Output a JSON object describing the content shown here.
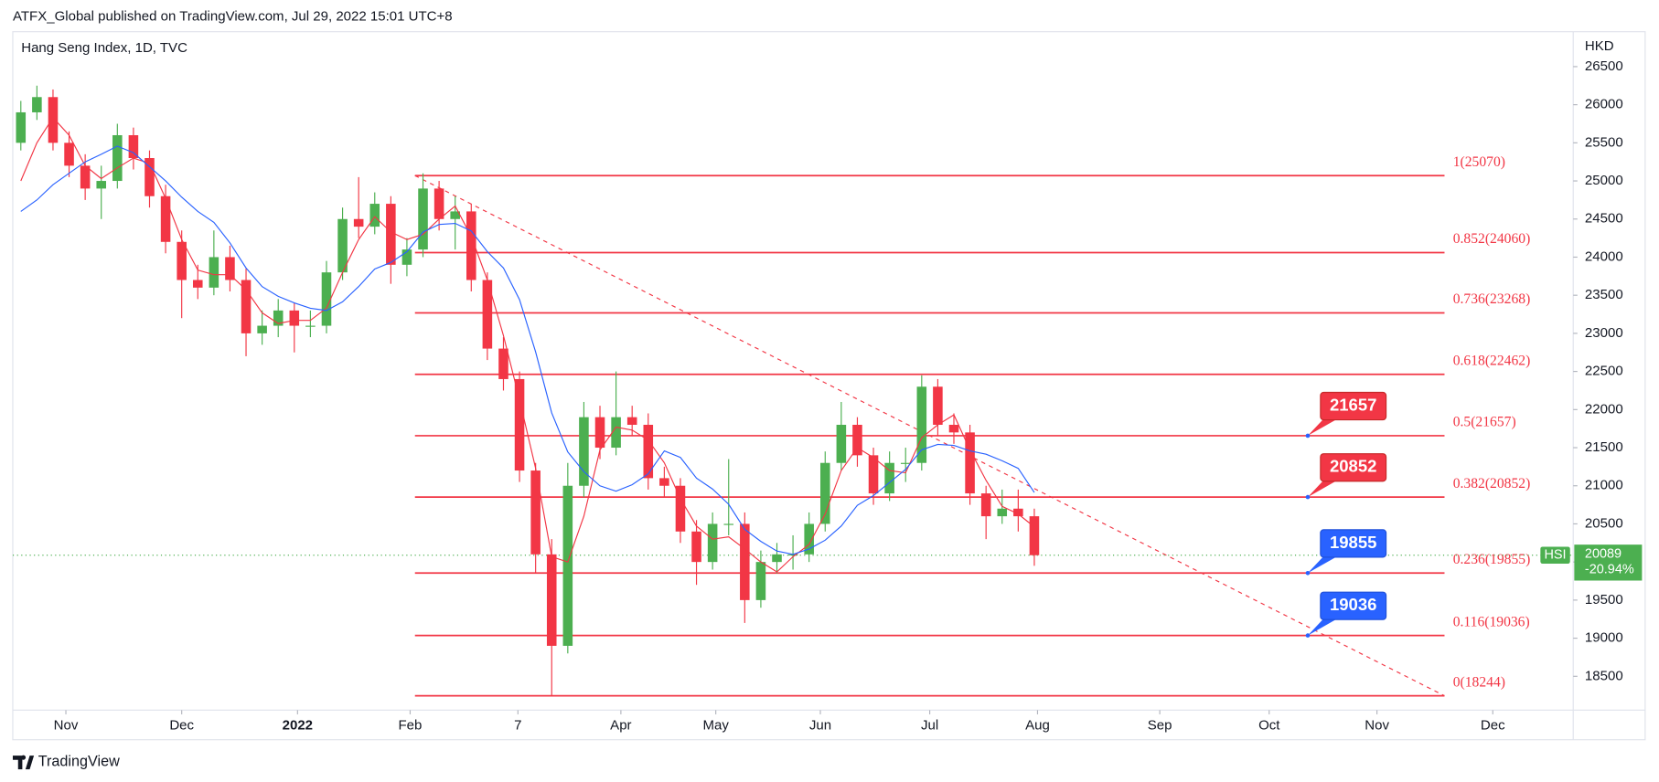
{
  "header": {
    "publisher": "ATFX_Global published on TradingView.com, Jul 29, 2022 15:01 UTC+8"
  },
  "footer": {
    "brand": "TradingView"
  },
  "chart_data": {
    "type": "candlestick",
    "title": "Hang Seng Index, 1D, TVC",
    "currency": "HKD",
    "up_color": "#4caf50",
    "down_color": "#f23645",
    "xlim": [
      0,
      97
    ],
    "xticks": [
      {
        "value": 3.3,
        "label": "Nov"
      },
      {
        "value": 10.5,
        "label": "Dec"
      },
      {
        "value": 17.7,
        "label": "2022"
      },
      {
        "value": 24.7,
        "label": "Feb"
      },
      {
        "value": 31.4,
        "label": "7"
      },
      {
        "value": 37.8,
        "label": "Apr"
      },
      {
        "value": 43.7,
        "label": "May"
      },
      {
        "value": 50.2,
        "label": "Jun"
      },
      {
        "value": 57.0,
        "label": "Jul"
      },
      {
        "value": 63.7,
        "label": "Aug"
      },
      {
        "value": 71.3,
        "label": "Sep"
      },
      {
        "value": 78.1,
        "label": "Oct"
      },
      {
        "value": 84.8,
        "label": "Nov"
      },
      {
        "value": 92.0,
        "label": "Dec"
      }
    ],
    "ylim": [
      18056,
      26958
    ],
    "yticks": [
      18500,
      19000,
      19500,
      20000,
      20500,
      21000,
      21500,
      22000,
      22500,
      23000,
      23500,
      24000,
      24500,
      25000,
      25500,
      26000,
      26500
    ],
    "candles": [
      [
        25500,
        26050,
        25400,
        25900
      ],
      [
        25900,
        26250,
        25800,
        26100
      ],
      [
        26100,
        26200,
        25400,
        25500
      ],
      [
        25500,
        25650,
        25050,
        25200
      ],
      [
        25200,
        25350,
        24750,
        24900
      ],
      [
        24900,
        25200,
        24500,
        25000
      ],
      [
        25000,
        25750,
        24900,
        25600
      ],
      [
        25600,
        25700,
        25150,
        25300
      ],
      [
        25300,
        25400,
        24650,
        24800
      ],
      [
        24800,
        24950,
        24050,
        24200
      ],
      [
        24200,
        24350,
        23200,
        23700
      ],
      [
        23700,
        23900,
        23450,
        23600
      ],
      [
        23600,
        24350,
        23500,
        24000
      ],
      [
        24000,
        24150,
        23550,
        23700
      ],
      [
        23700,
        23850,
        22700,
        23000
      ],
      [
        23000,
        23300,
        22850,
        23100
      ],
      [
        23100,
        23450,
        22950,
        23300
      ],
      [
        23300,
        23400,
        22750,
        23100
      ],
      [
        23100,
        23300,
        22950,
        23100
      ],
      [
        23100,
        23950,
        23000,
        23800
      ],
      [
        23800,
        24650,
        23700,
        24500
      ],
      [
        24500,
        25050,
        24250,
        24400
      ],
      [
        24400,
        24850,
        24300,
        24700
      ],
      [
        24700,
        24800,
        23650,
        23900
      ],
      [
        23900,
        24250,
        23750,
        24100
      ],
      [
        24100,
        25100,
        24000,
        24900
      ],
      [
        24900,
        25000,
        24350,
        24500
      ],
      [
        24500,
        24800,
        24100,
        24600
      ],
      [
        24600,
        24700,
        23550,
        23700
      ],
      [
        23700,
        23800,
        22650,
        22800
      ],
      [
        22800,
        22950,
        22250,
        22400
      ],
      [
        22400,
        22500,
        21050,
        21200
      ],
      [
        21200,
        21300,
        19850,
        20100
      ],
      [
        20100,
        20300,
        18250,
        18900
      ],
      [
        18900,
        21300,
        18800,
        21000
      ],
      [
        21000,
        22100,
        20850,
        21900
      ],
      [
        21900,
        22050,
        21350,
        21500
      ],
      [
        21500,
        22500,
        21400,
        21900
      ],
      [
        21900,
        22050,
        21650,
        21800
      ],
      [
        21800,
        21950,
        20950,
        21100
      ],
      [
        21100,
        21250,
        20850,
        21000
      ],
      [
        21000,
        21100,
        20250,
        20400
      ],
      [
        20400,
        20550,
        19700,
        20000
      ],
      [
        20000,
        20650,
        19900,
        20500
      ],
      [
        20500,
        21350,
        20350,
        20500
      ],
      [
        20500,
        20650,
        19200,
        19500
      ],
      [
        19500,
        20150,
        19400,
        20000
      ],
      [
        20000,
        20250,
        19850,
        20100
      ],
      [
        20100,
        20350,
        19900,
        20100
      ],
      [
        20100,
        20650,
        20000,
        20500
      ],
      [
        20500,
        21450,
        20400,
        21300
      ],
      [
        21300,
        22100,
        21200,
        21800
      ],
      [
        21800,
        21900,
        21250,
        21400
      ],
      [
        21400,
        21500,
        20750,
        20900
      ],
      [
        20900,
        21450,
        20800,
        21300
      ],
      [
        21300,
        21500,
        21050,
        21300
      ],
      [
        21300,
        22450,
        21200,
        22300
      ],
      [
        22300,
        22400,
        21650,
        21800
      ],
      [
        21800,
        21950,
        21550,
        21700
      ],
      [
        21700,
        21800,
        20750,
        20900
      ],
      [
        20900,
        21000,
        20300,
        20600
      ],
      [
        20600,
        20950,
        20500,
        20700
      ],
      [
        20700,
        20950,
        20400,
        20600
      ],
      [
        20600,
        20700,
        19950,
        20089
      ]
    ],
    "series": [
      {
        "color": "#f23645",
        "values": [
          25000,
          25500,
          25830,
          25600,
          25200,
          25030,
          25170,
          25300,
          25230,
          24770,
          24230,
          23830,
          23770,
          23770,
          23570,
          23270,
          23130,
          23170,
          23170,
          23330,
          23800,
          24230,
          24530,
          24330,
          24230,
          24300,
          24500,
          24670,
          24270,
          23700,
          22970,
          22130,
          21230,
          20070,
          20000,
          20600,
          21470,
          21770,
          21730,
          21600,
          21300,
          20830,
          20470,
          20300,
          20330,
          20170,
          20000,
          19870,
          20070,
          20230,
          20630,
          21200,
          21500,
          21370,
          21200,
          21170,
          21630,
          21800,
          21930,
          21470,
          21070,
          20730,
          20630,
          20460
        ]
      },
      {
        "color": "#2962ff",
        "values": [
          24600,
          24750,
          24950,
          25100,
          25250,
          25350,
          25457,
          25371,
          25186,
          25000,
          24786,
          24600,
          24457,
          24186,
          23857,
          23614,
          23486,
          23400,
          23329,
          23300,
          23414,
          23614,
          23843,
          23929,
          24071,
          24329,
          24429,
          24443,
          24343,
          24071,
          23857,
          23443,
          22757,
          21957,
          21443,
          21186,
          21000,
          20929,
          21014,
          21157,
          21457,
          21371,
          21100,
          20957,
          20757,
          20429,
          20271,
          20143,
          20100,
          20171,
          20286,
          20471,
          20743,
          20871,
          21043,
          21214,
          21471,
          21543,
          21529,
          21457,
          21414,
          21329,
          21229,
          20913
        ]
      }
    ],
    "fib": {
      "color": "#f23645",
      "x": [
        25,
        89
      ],
      "levels": [
        {
          "value": 25070,
          "label": "1(25070)"
        },
        {
          "value": 24060,
          "label": "0.852(24060)"
        },
        {
          "value": 23268,
          "label": "0.736(23268)"
        },
        {
          "value": 22462,
          "label": "0.618(22462)"
        },
        {
          "value": 21657,
          "label": "0.5(21657)"
        },
        {
          "value": 20852,
          "label": "0.382(20852)"
        },
        {
          "value": 19855,
          "label": "0.236(19855)"
        },
        {
          "value": 19036,
          "label": "0.116(19036)"
        },
        {
          "value": 18244,
          "label": "0(18244)"
        }
      ]
    },
    "trend_line": {
      "color": "#f23645",
      "x": [
        25,
        89
      ],
      "y": [
        25070,
        18244
      ]
    },
    "callouts": {
      "x": 80.5,
      "items": [
        {
          "value": 21657,
          "color": "#f23645"
        },
        {
          "value": 20852,
          "color": "#f23645"
        },
        {
          "value": 19855,
          "color": "#2962ff"
        },
        {
          "value": 19036,
          "color": "#2962ff"
        }
      ]
    },
    "last_price": {
      "symbol": "HSI",
      "value": 20089,
      "change": "-20.94%",
      "color": "#4caf50"
    }
  }
}
